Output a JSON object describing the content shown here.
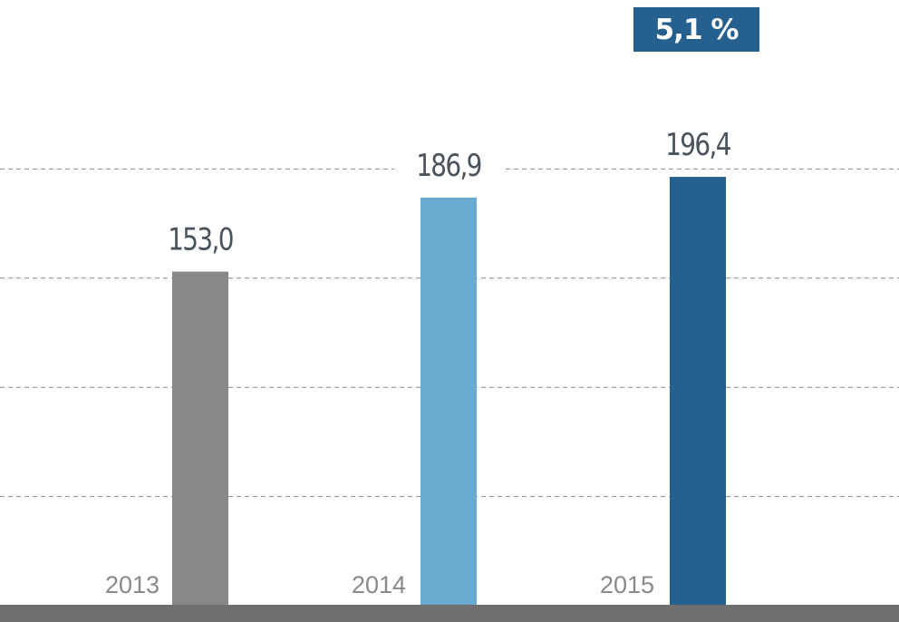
{
  "badge": {
    "label": "5,1 %"
  },
  "chart_data": {
    "type": "bar",
    "categories": [
      "2013",
      "2014",
      "2015"
    ],
    "values": [
      153.0,
      186.9,
      196.4
    ],
    "value_labels": [
      "153,0",
      "186,9",
      "196,4"
    ],
    "colors": [
      "#888888",
      "#6aaad0",
      "#26608f"
    ],
    "title": "",
    "xlabel": "",
    "ylabel": "",
    "ylim": [
      0,
      250
    ],
    "gridlines": [
      50,
      100,
      150,
      200
    ],
    "grid": true,
    "grid_style": "dashed",
    "legend": "none"
  }
}
